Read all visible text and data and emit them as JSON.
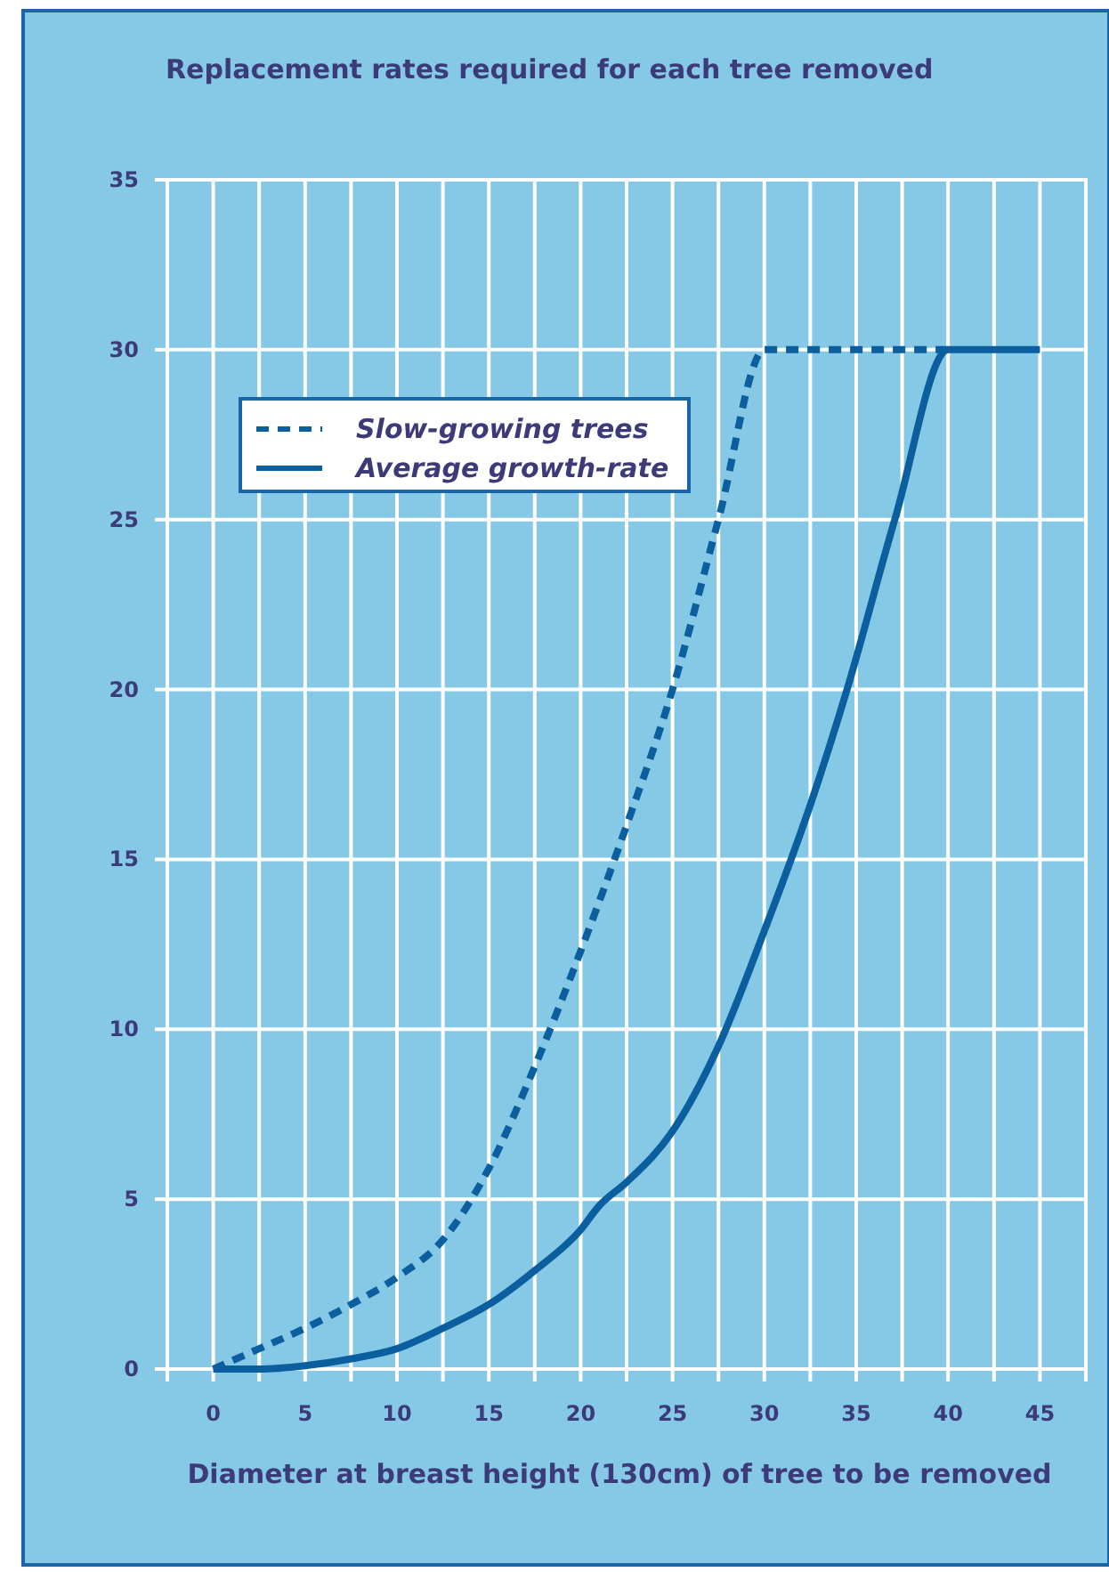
{
  "chart_data": {
    "type": "line",
    "title": "Replacement rates required for each tree removed",
    "xlabel": "Diameter at breast height (130cm) of tree to be removed",
    "xlim": [
      -2.5,
      47.5
    ],
    "ylim": [
      0,
      35
    ],
    "xticks": [
      {
        "value": -2.5,
        "label": null
      },
      0,
      {
        "value": 2.5,
        "label": null
      },
      5,
      {
        "value": 7.5,
        "label": null
      },
      10,
      {
        "value": 12.5,
        "label": null
      },
      15,
      {
        "value": 17.5,
        "label": null
      },
      20,
      {
        "value": 22.5,
        "label": null
      },
      25,
      {
        "value": 27.5,
        "label": null
      },
      30,
      {
        "value": 32.5,
        "label": null
      },
      35,
      {
        "value": 37.5,
        "label": null
      },
      40,
      {
        "value": 42.5,
        "label": null
      },
      45,
      {
        "value": 47.5,
        "label": null
      }
    ],
    "yticks": [
      0,
      5,
      10,
      15,
      20,
      25,
      30,
      35
    ],
    "grid": true,
    "legend": "top left",
    "series": [
      {
        "name": "Slow-growing trees",
        "color": "#0b5f9e",
        "line_style": "dashed",
        "x": [
          0,
          2.5,
          5,
          7.5,
          10,
          12.5,
          15,
          17.5,
          20,
          22.5,
          25,
          27.5,
          30,
          40
        ],
        "values": [
          0,
          0.6,
          1.2,
          1.9,
          2.7,
          3.8,
          5.9,
          8.9,
          12.3,
          16,
          20,
          25,
          30,
          30
        ]
      },
      {
        "name": "Average growth-rate",
        "color": "#0b5f9e",
        "line_style": "solid",
        "x": [
          0,
          2.5,
          5,
          7.5,
          10,
          12.5,
          15,
          17.5,
          20,
          21,
          22.5,
          25,
          27.5,
          30,
          32.5,
          34.5,
          37.1,
          40,
          45
        ],
        "values": [
          0,
          0,
          0.1,
          0.3,
          0.6,
          1.2,
          1.9,
          2.9,
          4.1,
          4.8,
          5.5,
          7,
          9.5,
          12.9,
          16.6,
          20,
          25,
          30,
          30
        ]
      }
    ]
  }
}
